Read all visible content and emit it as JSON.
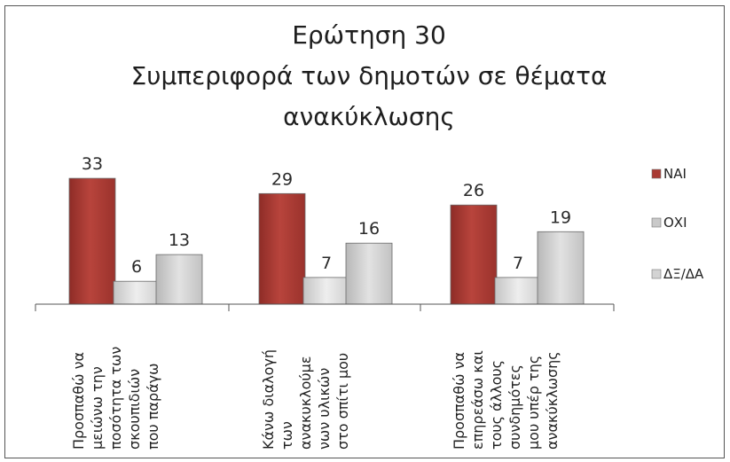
{
  "chart_data": {
    "type": "bar",
    "title": [
      "Ερώτηση 30",
      "Συμπεριφορά των δημοτών σε θέματα",
      "ανακύκλωσης"
    ],
    "xlabel": "",
    "ylabel": "",
    "ylim": [
      0,
      35
    ],
    "grid": false,
    "legend_position": "right",
    "categories": [
      {
        "lines": [
          "Προσπαθώ να",
          "μειώνω την",
          "ποσότητα των",
          "σκουπιδιών",
          "που παράγω"
        ]
      },
      {
        "lines": [
          "Κάνω διαλογή",
          "των",
          "ανακυκλούμε",
          "νων υλικών",
          "στο σπίτι μου"
        ]
      },
      {
        "lines": [
          "Προσπαθώ να",
          "επηρεάσω και",
          "τους άλλους",
          "συνδημότες",
          "μου υπέρ της",
          "ανακύκλωσης"
        ]
      }
    ],
    "series": [
      {
        "name": "ΝΑΙ",
        "values": [
          33,
          29,
          26
        ],
        "color": "#a93a33"
      },
      {
        "name": "ΟΧΙ",
        "values": [
          6,
          7,
          7
        ],
        "color": "#dcdcdc"
      },
      {
        "name": "ΔΞ/ΔΑ",
        "values": [
          13,
          16,
          19
        ],
        "color": "#c8c8c8"
      }
    ]
  }
}
